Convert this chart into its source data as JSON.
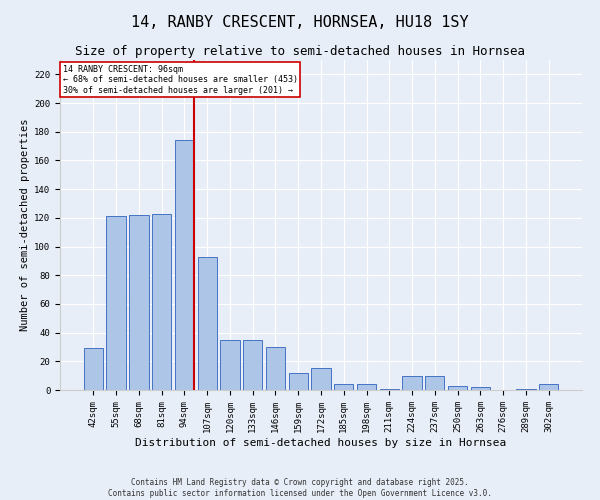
{
  "title1": "14, RANBY CRESCENT, HORNSEA, HU18 1SY",
  "title2": "Size of property relative to semi-detached houses in Hornsea",
  "xlabel": "Distribution of semi-detached houses by size in Hornsea",
  "ylabel": "Number of semi-detached properties",
  "categories": [
    "42sqm",
    "55sqm",
    "68sqm",
    "81sqm",
    "94sqm",
    "107sqm",
    "120sqm",
    "133sqm",
    "146sqm",
    "159sqm",
    "172sqm",
    "185sqm",
    "198sqm",
    "211sqm",
    "224sqm",
    "237sqm",
    "250sqm",
    "263sqm",
    "276sqm",
    "289sqm",
    "302sqm"
  ],
  "values": [
    29,
    121,
    122,
    123,
    174,
    93,
    35,
    35,
    30,
    12,
    15,
    4,
    4,
    1,
    10,
    10,
    3,
    2,
    0,
    1,
    4
  ],
  "bar_color": "#adc6e8",
  "bar_edge_color": "#4472c4",
  "highlight_index": 4,
  "highlight_line_color": "#cc0000",
  "annotation_line1": "14 RANBY CRESCENT: 96sqm",
  "annotation_line2": "← 68% of semi-detached houses are smaller (453)",
  "annotation_line3": "30% of semi-detached houses are larger (201) →",
  "annotation_box_color": "#ffffff",
  "annotation_box_edge": "#cc0000",
  "ylim": [
    0,
    230
  ],
  "yticks": [
    0,
    20,
    40,
    60,
    80,
    100,
    120,
    140,
    160,
    180,
    200,
    220
  ],
  "background_color": "#e8eef7",
  "footer_text": "Contains HM Land Registry data © Crown copyright and database right 2025.\nContains public sector information licensed under the Open Government Licence v3.0.",
  "title_fontsize": 11,
  "subtitle_fontsize": 9,
  "xlabel_fontsize": 8,
  "ylabel_fontsize": 7.5,
  "tick_fontsize": 6.5,
  "footer_fontsize": 5.5
}
